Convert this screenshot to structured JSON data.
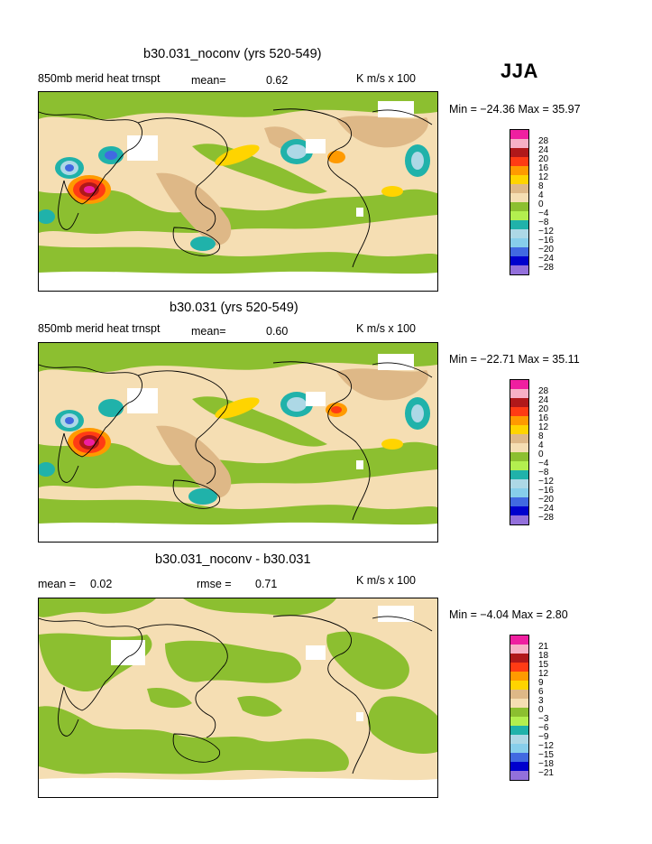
{
  "season": "JJA",
  "palette": {
    "c1": "#ef1fa0",
    "c2": "#f7b0c6",
    "c3": "#b0181a",
    "c4": "#ff3b14",
    "c5": "#ff9a00",
    "c6": "#ffd400",
    "c7": "#deb887",
    "c8": "#f5deb3",
    "c9": "#8cbf30",
    "c10": "#b3ef4f",
    "c11": "#20b2aa",
    "c12": "#add8e6",
    "c13": "#87ceeb",
    "c14": "#4169e1",
    "c15": "#0000cd",
    "c16": "#9370db",
    "white": "#ffffff",
    "coast": "#000000"
  },
  "panels": [
    {
      "title": "b30.031_noconv (yrs 520-549)",
      "left_label": "850mb merid heat trnspt",
      "mean_label": "mean=",
      "mean_value": "0.62",
      "units": "K m/s x 100",
      "min_max": "Min = −24.36 Max =  35.97",
      "colorbar_labels": [
        "28",
        "24",
        "20",
        "16",
        "12",
        "8",
        "4",
        "0",
        "−4",
        "−8",
        "−12",
        "−16",
        "−20",
        "−24",
        "−28"
      ]
    },
    {
      "title": "b30.031 (yrs 520-549)",
      "left_label": "850mb merid heat trnspt",
      "mean_label": "mean=",
      "mean_value": "0.60",
      "units": "K m/s x 100",
      "min_max": "Min = −22.71 Max =  35.11",
      "colorbar_labels": [
        "28",
        "24",
        "20",
        "16",
        "12",
        "8",
        "4",
        "0",
        "−4",
        "−8",
        "−12",
        "−16",
        "−20",
        "−24",
        "−28"
      ]
    },
    {
      "title": "b30.031_noconv - b30.031",
      "mean_label": "mean =",
      "mean_value": "0.02",
      "rmse_label": "rmse =",
      "rmse_value": "0.71",
      "units": "K m/s x 100",
      "min_max": "Min =  −4.04 Max =   2.80",
      "colorbar_labels": [
        "21",
        "18",
        "15",
        "12",
        "9",
        "6",
        "3",
        "0",
        "−3",
        "−6",
        "−9",
        "−12",
        "−15",
        "−18",
        "−21"
      ]
    }
  ],
  "chart_data": [
    {
      "type": "heatmap",
      "title": "b30.031_noconv (yrs 520-549)",
      "variable": "850mb merid heat trnspt",
      "units": "K m/s x 100",
      "mean": 0.62,
      "min": -24.36,
      "max": 35.97,
      "levels": [
        -28,
        -24,
        -20,
        -16,
        -12,
        -8,
        -4,
        0,
        4,
        8,
        12,
        16,
        20,
        24,
        28
      ]
    },
    {
      "type": "heatmap",
      "title": "b30.031 (yrs 520-549)",
      "variable": "850mb merid heat trnspt",
      "units": "K m/s x 100",
      "mean": 0.6,
      "min": -22.71,
      "max": 35.11,
      "levels": [
        -28,
        -24,
        -20,
        -16,
        -12,
        -8,
        -4,
        0,
        4,
        8,
        12,
        16,
        20,
        24,
        28
      ]
    },
    {
      "type": "heatmap",
      "title": "b30.031_noconv - b30.031",
      "units": "K m/s x 100",
      "mean": 0.02,
      "rmse": 0.71,
      "min": -4.04,
      "max": 2.8,
      "levels": [
        -21,
        -18,
        -15,
        -12,
        -9,
        -6,
        -3,
        0,
        3,
        6,
        9,
        12,
        15,
        18,
        21
      ]
    }
  ]
}
